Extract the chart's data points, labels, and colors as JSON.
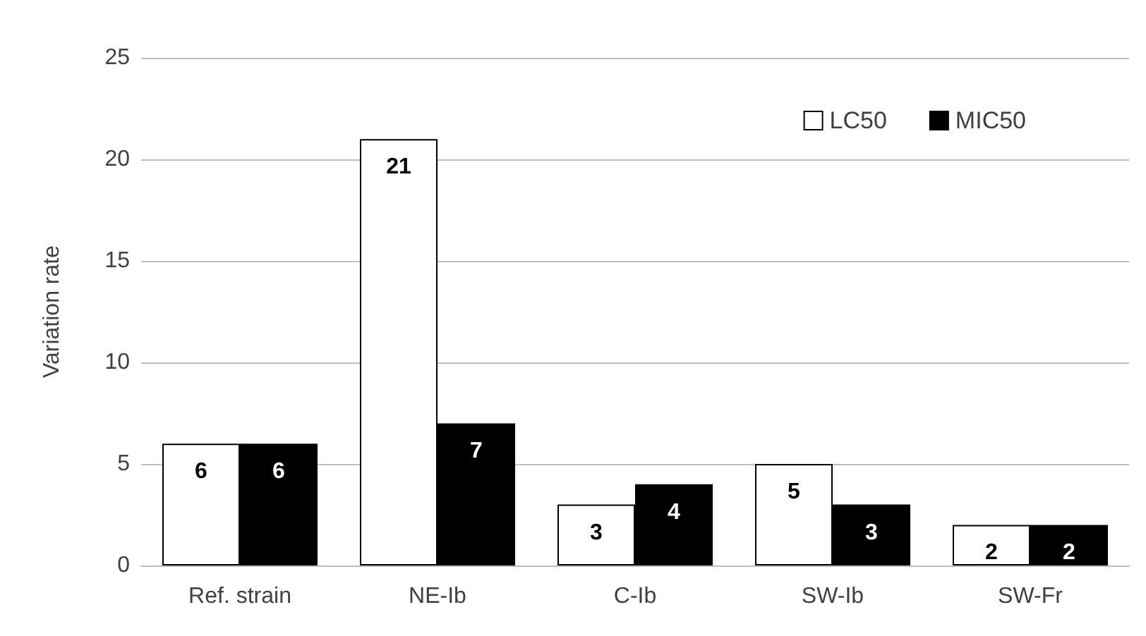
{
  "chart_data": {
    "type": "bar",
    "ylabel": "Variation rate",
    "categories": [
      "Ref. strain",
      "NE-Ib",
      "C-Ib",
      "SW-Ib",
      "SW-Fr"
    ],
    "series": [
      {
        "name": "LC50",
        "color": "#ffffff",
        "values": [
          6,
          21,
          3,
          5,
          2
        ]
      },
      {
        "name": "MIC50",
        "color": "#000000",
        "values": [
          6,
          7,
          4,
          3,
          2
        ]
      }
    ],
    "ylim": [
      0,
      25
    ],
    "yticks": [
      0,
      5,
      10,
      15,
      20,
      25
    ],
    "grid": "y",
    "legend": "top right",
    "data_labels": true
  }
}
